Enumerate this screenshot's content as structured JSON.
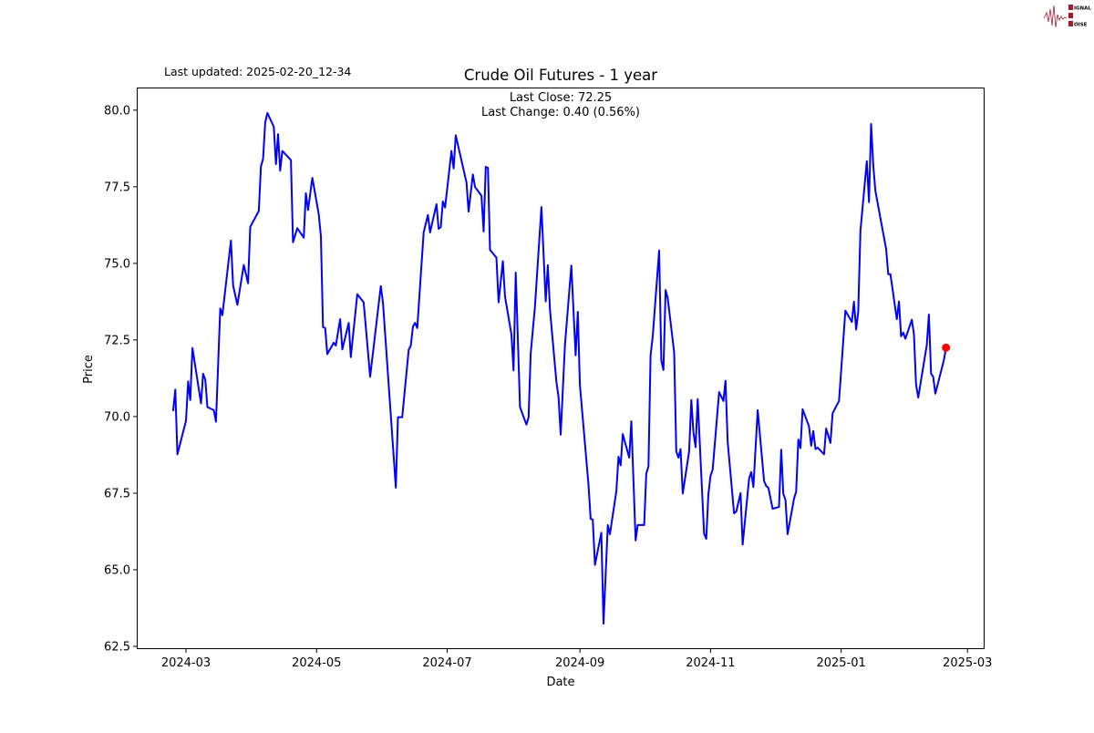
{
  "header": {
    "last_updated": "Last updated: 2025-02-20_12-34",
    "logo_text": "SIGNAL 2 NOISE"
  },
  "annotations": {
    "last_close": "Last Close: 72.25",
    "last_change": "Last Change: 0.40 (0.56%)"
  },
  "colors": {
    "line": "#0000ff",
    "last_point": "#ff0000",
    "logo": "#a01c28"
  },
  "chart_data": {
    "type": "line",
    "title": "Crude Oil Futures - 1 year",
    "xlabel": "Date",
    "ylabel": "Price",
    "xlim": [
      "2024-02-07",
      "2025-03-09"
    ],
    "ylim": [
      62.41,
      80.74
    ],
    "grid": false,
    "x_ticks": [
      "2024-03",
      "2024-05",
      "2024-07",
      "2024-09",
      "2024-11",
      "2025-01",
      "2025-03"
    ],
    "y_ticks": [
      "62.5",
      "65.0",
      "67.5",
      "70.0",
      "72.5",
      "75.0",
      "77.5",
      "80.0"
    ],
    "last_point": {
      "x": "2025-02-19",
      "y": 72.25
    },
    "series": [
      {
        "points": [
          [
            "2024-02-24",
            70.18
          ],
          [
            "2024-02-25",
            70.88
          ],
          [
            "2024-02-26",
            68.77
          ],
          [
            "2024-03-01",
            69.86
          ],
          [
            "2024-03-02",
            71.15
          ],
          [
            "2024-03-03",
            70.54
          ],
          [
            "2024-03-04",
            72.24
          ],
          [
            "2024-03-08",
            70.43
          ],
          [
            "2024-03-09",
            71.4
          ],
          [
            "2024-03-10",
            71.2
          ],
          [
            "2024-03-11",
            70.31
          ],
          [
            "2024-03-14",
            70.21
          ],
          [
            "2024-03-15",
            69.83
          ],
          [
            "2024-03-17",
            73.53
          ],
          [
            "2024-03-18",
            73.31
          ],
          [
            "2024-03-22",
            75.74
          ],
          [
            "2024-03-23",
            74.28
          ],
          [
            "2024-03-25",
            73.65
          ],
          [
            "2024-03-28",
            74.95
          ],
          [
            "2024-03-30",
            74.35
          ],
          [
            "2024-03-31",
            76.19
          ],
          [
            "2024-04-04",
            76.71
          ],
          [
            "2024-04-05",
            78.16
          ],
          [
            "2024-04-06",
            78.42
          ],
          [
            "2024-04-07",
            79.6
          ],
          [
            "2024-04-08",
            79.91
          ],
          [
            "2024-04-11",
            79.46
          ],
          [
            "2024-04-12",
            78.24
          ],
          [
            "2024-04-13",
            79.22
          ],
          [
            "2024-04-14",
            78.03
          ],
          [
            "2024-04-15",
            78.67
          ],
          [
            "2024-04-19",
            78.37
          ],
          [
            "2024-04-20",
            75.69
          ],
          [
            "2024-04-22",
            76.15
          ],
          [
            "2024-04-25",
            75.84
          ],
          [
            "2024-04-26",
            77.29
          ],
          [
            "2024-04-27",
            76.74
          ],
          [
            "2024-04-29",
            77.79
          ],
          [
            "2024-05-02",
            76.61
          ],
          [
            "2024-05-03",
            75.88
          ],
          [
            "2024-05-04",
            72.92
          ],
          [
            "2024-05-05",
            72.89
          ],
          [
            "2024-05-06",
            72.04
          ],
          [
            "2024-05-09",
            72.41
          ],
          [
            "2024-05-10",
            72.32
          ],
          [
            "2024-05-12",
            73.18
          ],
          [
            "2024-05-13",
            72.19
          ],
          [
            "2024-05-16",
            73.06
          ],
          [
            "2024-05-17",
            71.94
          ],
          [
            "2024-05-20",
            73.99
          ],
          [
            "2024-05-23",
            73.73
          ],
          [
            "2024-05-26",
            71.3
          ],
          [
            "2024-05-31",
            74.26
          ],
          [
            "2024-06-01",
            73.71
          ],
          [
            "2024-06-07",
            67.68
          ],
          [
            "2024-06-08",
            69.98
          ],
          [
            "2024-06-10",
            69.98
          ],
          [
            "2024-06-13",
            72.18
          ],
          [
            "2024-06-14",
            72.32
          ],
          [
            "2024-06-15",
            72.94
          ],
          [
            "2024-06-16",
            73.06
          ],
          [
            "2024-06-17",
            72.89
          ],
          [
            "2024-06-20",
            76.01
          ],
          [
            "2024-06-22",
            76.58
          ],
          [
            "2024-06-23",
            76.01
          ],
          [
            "2024-06-26",
            76.93
          ],
          [
            "2024-06-27",
            76.13
          ],
          [
            "2024-06-28",
            76.18
          ],
          [
            "2024-06-29",
            77.02
          ],
          [
            "2024-06-30",
            76.82
          ],
          [
            "2024-07-03",
            78.67
          ],
          [
            "2024-07-04",
            78.1
          ],
          [
            "2024-07-05",
            79.18
          ],
          [
            "2024-07-10",
            77.64
          ],
          [
            "2024-07-11",
            76.69
          ],
          [
            "2024-07-13",
            77.9
          ],
          [
            "2024-07-14",
            77.49
          ],
          [
            "2024-07-17",
            77.21
          ],
          [
            "2024-07-18",
            76.04
          ],
          [
            "2024-07-19",
            78.15
          ],
          [
            "2024-07-20",
            78.12
          ],
          [
            "2024-07-21",
            75.44
          ],
          [
            "2024-07-24",
            75.19
          ],
          [
            "2024-07-25",
            73.73
          ],
          [
            "2024-07-27",
            75.07
          ],
          [
            "2024-07-28",
            73.93
          ],
          [
            "2024-07-31",
            72.68
          ],
          [
            "2024-08-01",
            71.51
          ],
          [
            "2024-08-02",
            74.7
          ],
          [
            "2024-08-04",
            70.31
          ],
          [
            "2024-08-07",
            69.74
          ],
          [
            "2024-08-08",
            69.97
          ],
          [
            "2024-08-09",
            72.05
          ],
          [
            "2024-08-11",
            73.59
          ],
          [
            "2024-08-14",
            76.84
          ],
          [
            "2024-08-16",
            73.76
          ],
          [
            "2024-08-17",
            74.94
          ],
          [
            "2024-08-18",
            73.48
          ],
          [
            "2024-08-21",
            71.14
          ],
          [
            "2024-08-22",
            70.63
          ],
          [
            "2024-08-23",
            69.41
          ],
          [
            "2024-08-25",
            72.34
          ],
          [
            "2024-08-28",
            74.93
          ],
          [
            "2024-08-30",
            72.0
          ],
          [
            "2024-08-31",
            73.42
          ],
          [
            "2024-09-01",
            71.03
          ],
          [
            "2024-09-05",
            67.78
          ],
          [
            "2024-09-06",
            66.66
          ],
          [
            "2024-09-07",
            66.64
          ],
          [
            "2024-09-08",
            65.16
          ],
          [
            "2024-09-11",
            66.21
          ],
          [
            "2024-09-12",
            63.24
          ],
          [
            "2024-09-14",
            66.46
          ],
          [
            "2024-09-15",
            66.16
          ],
          [
            "2024-09-18",
            67.57
          ],
          [
            "2024-09-19",
            68.69
          ],
          [
            "2024-09-20",
            68.41
          ],
          [
            "2024-09-21",
            69.43
          ],
          [
            "2024-09-24",
            68.66
          ],
          [
            "2024-09-25",
            69.85
          ],
          [
            "2024-09-27",
            65.96
          ],
          [
            "2024-09-28",
            66.46
          ],
          [
            "2024-10-01",
            66.46
          ],
          [
            "2024-10-02",
            68.14
          ],
          [
            "2024-10-03",
            68.37
          ],
          [
            "2024-10-04",
            72.0
          ],
          [
            "2024-10-05",
            72.62
          ],
          [
            "2024-10-08",
            75.42
          ],
          [
            "2024-10-09",
            71.83
          ],
          [
            "2024-10-10",
            71.52
          ],
          [
            "2024-10-11",
            74.13
          ],
          [
            "2024-10-12",
            73.87
          ],
          [
            "2024-10-15",
            72.09
          ],
          [
            "2024-10-16",
            68.86
          ],
          [
            "2024-10-17",
            68.66
          ],
          [
            "2024-10-18",
            68.94
          ],
          [
            "2024-10-19",
            67.49
          ],
          [
            "2024-10-22",
            68.86
          ],
          [
            "2024-10-23",
            70.54
          ],
          [
            "2024-10-24",
            69.49
          ],
          [
            "2024-10-25",
            69.0
          ],
          [
            "2024-10-26",
            70.57
          ],
          [
            "2024-10-29",
            66.18
          ],
          [
            "2024-10-30",
            66.01
          ],
          [
            "2024-10-31",
            67.46
          ],
          [
            "2024-11-01",
            68.07
          ],
          [
            "2024-11-02",
            68.26
          ],
          [
            "2024-11-05",
            70.8
          ],
          [
            "2024-11-07",
            70.51
          ],
          [
            "2024-11-08",
            71.17
          ],
          [
            "2024-11-09",
            69.17
          ],
          [
            "2024-11-12",
            66.84
          ],
          [
            "2024-11-13",
            66.9
          ],
          [
            "2024-11-15",
            67.5
          ],
          [
            "2024-11-16",
            65.82
          ],
          [
            "2024-11-19",
            67.98
          ],
          [
            "2024-11-20",
            68.19
          ],
          [
            "2024-11-21",
            67.7
          ],
          [
            "2024-11-23",
            70.21
          ],
          [
            "2024-11-26",
            67.9
          ],
          [
            "2024-11-27",
            67.73
          ],
          [
            "2024-11-28",
            67.68
          ],
          [
            "2024-11-30",
            66.99
          ],
          [
            "2024-12-03",
            67.05
          ],
          [
            "2024-12-04",
            68.92
          ],
          [
            "2024-12-05",
            67.48
          ],
          [
            "2024-12-06",
            67.28
          ],
          [
            "2024-12-07",
            66.16
          ],
          [
            "2024-12-10",
            67.33
          ],
          [
            "2024-12-11",
            67.55
          ],
          [
            "2024-12-12",
            69.25
          ],
          [
            "2024-12-13",
            68.97
          ],
          [
            "2024-12-14",
            70.24
          ],
          [
            "2024-12-17",
            69.68
          ],
          [
            "2024-12-18",
            69.05
          ],
          [
            "2024-12-19",
            69.53
          ],
          [
            "2024-12-20",
            68.94
          ],
          [
            "2024-12-21",
            68.99
          ],
          [
            "2024-12-24",
            68.77
          ],
          [
            "2024-12-25",
            69.61
          ],
          [
            "2024-12-27",
            69.14
          ],
          [
            "2024-12-28",
            70.11
          ],
          [
            "2024-12-31",
            70.51
          ],
          [
            "2025-01-03",
            73.46
          ],
          [
            "2025-01-06",
            73.09
          ],
          [
            "2025-01-07",
            73.75
          ],
          [
            "2025-01-08",
            72.84
          ],
          [
            "2025-01-09",
            73.43
          ],
          [
            "2025-01-10",
            76.06
          ],
          [
            "2025-01-13",
            78.34
          ],
          [
            "2025-01-14",
            77.0
          ],
          [
            "2025-01-15",
            79.55
          ],
          [
            "2025-01-16",
            78.19
          ],
          [
            "2025-01-17",
            77.37
          ],
          [
            "2025-01-22",
            75.47
          ],
          [
            "2025-01-23",
            74.65
          ],
          [
            "2025-01-24",
            74.65
          ],
          [
            "2025-01-27",
            73.18
          ],
          [
            "2025-01-28",
            73.76
          ],
          [
            "2025-01-29",
            72.62
          ],
          [
            "2025-01-30",
            72.74
          ],
          [
            "2025-01-31",
            72.54
          ],
          [
            "2025-02-03",
            73.16
          ],
          [
            "2025-02-04",
            72.69
          ],
          [
            "2025-02-05",
            71.05
          ],
          [
            "2025-02-06",
            70.62
          ],
          [
            "2025-02-10",
            72.34
          ],
          [
            "2025-02-11",
            73.33
          ],
          [
            "2025-02-12",
            71.4
          ],
          [
            "2025-02-13",
            71.3
          ],
          [
            "2025-02-14",
            70.75
          ],
          [
            "2025-02-18",
            71.85
          ],
          [
            "2025-02-19",
            72.25
          ]
        ]
      }
    ]
  }
}
